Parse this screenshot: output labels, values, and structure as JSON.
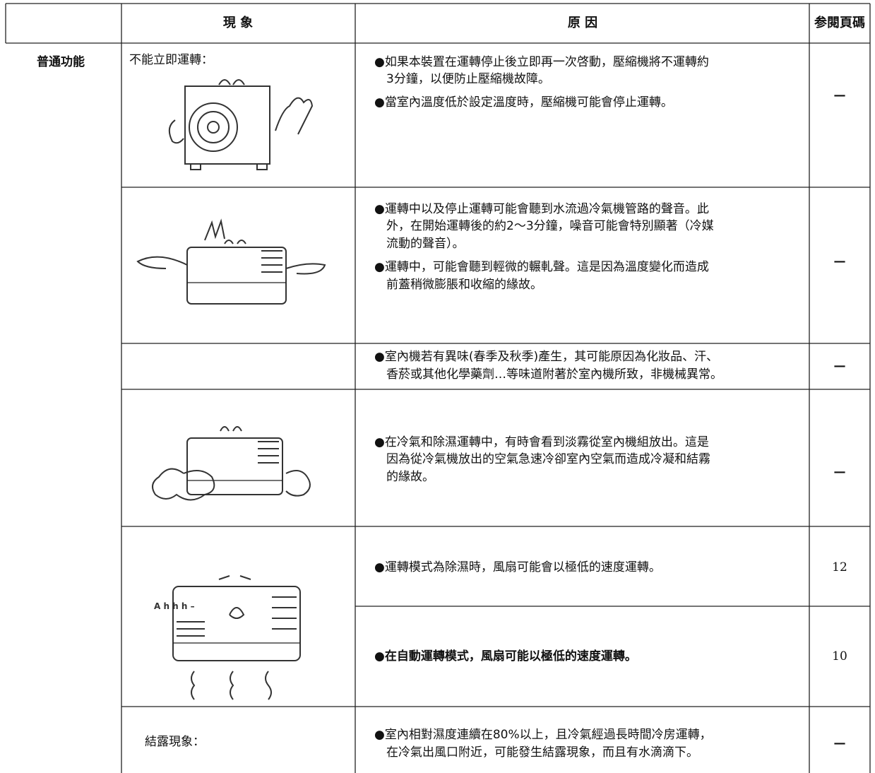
{
  "table": {
    "header": {
      "phenomenon": "現 象",
      "reason": "原 因",
      "page_ref": "参閱頁碼"
    },
    "category": "普通功能",
    "rows": [
      {
        "phenomenon": "不能立即運轉：",
        "reasons": [
          {
            "lines": [
              "●如果本裝置在運轉停止後立即再一次啓動，壓縮機將不運轉約",
              "3分鐘，以便防止壓縮機故障。"
            ]
          },
          {
            "lines": [
              "●當室內溫度低於設定溫度時，壓縮機可能會停止運轉。"
            ]
          }
        ],
        "page_ref": "—"
      },
      {
        "reasons": [
          {
            "lines": [
              "●運轉中以及停止運轉可能會聽到水流過冷氣機管路的聲音。此",
              "外，在開始運轉後的約2～3分鐘，噪音可能會特別顯著（冷媒",
              "流動的聲音）。"
            ]
          },
          {
            "lines": [
              "●運轉中，可能會聽到輕微的輾軋聲。這是因為溫度變化而造成",
              "前蓋稍微膨脹和收縮的緣故。"
            ]
          }
        ],
        "page_ref": "—"
      },
      {
        "reasons": [
          {
            "lines": [
              "●室內機若有異味(春季及秋季)產生，其可能原因為化妝品、汗、",
              "香菸或其他化學藥劑…等味道附著於室內機所致，非機械異常。"
            ]
          }
        ],
        "page_ref": "—"
      },
      {
        "reasons": [
          {
            "lines": [
              "●在冷氣和除濕運轉中，有時會看到淡霧從室內機組放出。這是",
              "因為從冷氣機放出的空氣急速冷卻室內空氣而造成冷凝和結霧",
              "的緣故。"
            ]
          }
        ],
        "page_ref": "—"
      },
      {
        "reasons": [
          {
            "lines": [
              "●運轉模式為除濕時，風扇可能會以極低的速度運轉。"
            ],
            "page_ref": "12"
          },
          {
            "lines": [
              "●在自動運轉模式，風扇可能以極低的速度運轉。"
            ],
            "page_ref": "10"
          }
        ]
      },
      {
        "phenomenon": "結露現象：",
        "reasons": [
          {
            "lines": [
              "●室內相對濕度連續在80%以上，且冷氣經過長時間冷房運轉，",
              "在冷氣出風口附近，可能發生結露現象，而且有水滴滴下。"
            ]
          }
        ],
        "page_ref": "—"
      }
    ]
  }
}
